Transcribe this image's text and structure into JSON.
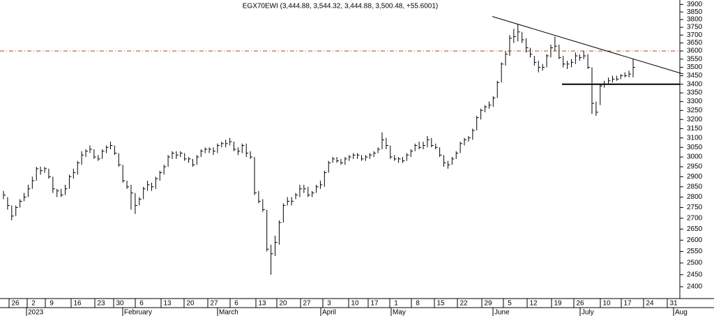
{
  "chart_data": {
    "type": "ohlc",
    "title": "EGX70EWI (3,444.88, 3,544.32, 3,444.88, 3,500.48, +55.6001)",
    "color": "#000000",
    "log_scale": true,
    "ylim": [
      2360,
      3930
    ],
    "yticks": [
      2400,
      2450,
      2500,
      2550,
      2600,
      2650,
      2700,
      2750,
      2800,
      2850,
      2900,
      2950,
      3000,
      3050,
      3100,
      3150,
      3200,
      3250,
      3300,
      3350,
      3400,
      3450,
      3500,
      3550,
      3600,
      3650,
      3700,
      3750,
      3800,
      3850,
      3900
    ],
    "day_labels": [
      "26",
      "2",
      "9",
      "16",
      "23",
      "30",
      "6",
      "13",
      "20",
      "27",
      "6",
      "13",
      "20",
      "27",
      "3",
      "10",
      "17",
      "1",
      "8",
      "15",
      "22",
      "29",
      "5",
      "12",
      "19",
      "26",
      "10",
      "17",
      "24",
      "31"
    ],
    "month_labels": [
      "2023",
      "February",
      "March",
      "April",
      "May",
      "June",
      "July",
      "Aug"
    ],
    "high": [
      2830,
      2800,
      2760,
      2760,
      2790,
      2820,
      2860,
      2900,
      2950,
      2950,
      2950,
      2940,
      2900,
      2840,
      2840,
      2860,
      2910,
      2940,
      2980,
      3030,
      3040,
      3060,
      3040,
      3010,
      3040,
      3060,
      3080,
      3060,
      3020,
      2960,
      2880,
      2860,
      2820,
      2800,
      2850,
      2880,
      2870,
      2900,
      2930,
      2960,
      3010,
      3030,
      3030,
      3030,
      3020,
      3000,
      2990,
      3010,
      3040,
      3050,
      3050,
      3050,
      3070,
      3080,
      3090,
      3100,
      3080,
      3050,
      3070,
      3070,
      3030,
      3000,
      2830,
      2790,
      2740,
      2580,
      2620,
      2690,
      2770,
      2800,
      2800,
      2820,
      2860,
      2860,
      2850,
      2830,
      2860,
      2880,
      2930,
      2980,
      3000,
      3000,
      2990,
      3000,
      3010,
      3020,
      3020,
      3010,
      3010,
      3020,
      3030,
      3050,
      3130,
      3100,
      3060,
      3010,
      3000,
      3000,
      3020,
      3040,
      3070,
      3080,
      3080,
      3110,
      3100,
      3070,
      3050,
      3010,
      2980,
      3000,
      3030,
      3080,
      3100,
      3110,
      3150,
      3220,
      3260,
      3280,
      3300,
      3330,
      3420,
      3530,
      3600,
      3700,
      3740,
      3770,
      3720,
      3680,
      3620,
      3570,
      3540,
      3520,
      3580,
      3640,
      3690,
      3640,
      3570,
      3540,
      3550,
      3590,
      3580,
      3600,
      3580,
      3500,
      3300,
      3400,
      3420,
      3440,
      3450,
      3450,
      3460,
      3470,
      3480,
      3550
    ],
    "low": [
      2790,
      2740,
      2690,
      2710,
      2750,
      2780,
      2800,
      2840,
      2880,
      2910,
      2920,
      2890,
      2820,
      2800,
      2800,
      2810,
      2840,
      2890,
      2910,
      2960,
      3000,
      3020,
      2990,
      2980,
      2990,
      3020,
      3040,
      3010,
      2950,
      2870,
      2840,
      2740,
      2720,
      2760,
      2790,
      2830,
      2830,
      2840,
      2880,
      2910,
      2950,
      2990,
      2990,
      3000,
      2980,
      2970,
      2950,
      2960,
      3000,
      3020,
      3020,
      3010,
      3020,
      3050,
      3050,
      3060,
      3030,
      3010,
      3020,
      3000,
      2990,
      2810,
      2770,
      2730,
      2550,
      2450,
      2530,
      2580,
      2680,
      2760,
      2760,
      2790,
      2800,
      2820,
      2800,
      2800,
      2820,
      2840,
      2850,
      2920,
      2970,
      2970,
      2960,
      2960,
      2980,
      2990,
      2990,
      2980,
      2980,
      2990,
      3000,
      3020,
      3040,
      3040,
      2990,
      2980,
      2970,
      2970,
      2980,
      3000,
      3030,
      3040,
      3040,
      3050,
      3050,
      3040,
      3000,
      2950,
      2940,
      2960,
      2990,
      3020,
      3060,
      3080,
      3090,
      3140,
      3200,
      3240,
      3260,
      3270,
      3320,
      3410,
      3510,
      3570,
      3650,
      3660,
      3650,
      3590,
      3560,
      3510,
      3470,
      3480,
      3500,
      3560,
      3600,
      3550,
      3500,
      3490,
      3500,
      3520,
      3540,
      3550,
      3490,
      3230,
      3220,
      3280,
      3380,
      3400,
      3410,
      3420,
      3430,
      3440,
      3440,
      3440
    ],
    "close": [
      2810,
      2760,
      2710,
      2750,
      2780,
      2800,
      2840,
      2880,
      2940,
      2930,
      2940,
      2900,
      2840,
      2830,
      2810,
      2840,
      2900,
      2920,
      2970,
      3010,
      3030,
      3040,
      3000,
      2990,
      3030,
      3050,
      3060,
      3020,
      2960,
      2880,
      2850,
      2820,
      2760,
      2790,
      2840,
      2860,
      2850,
      2890,
      2920,
      2950,
      3000,
      3020,
      3010,
      3020,
      2990,
      2990,
      2960,
      3000,
      3030,
      3040,
      3040,
      3030,
      3060,
      3070,
      3070,
      3080,
      3040,
      3030,
      3060,
      3020,
      3000,
      2820,
      2780,
      2740,
      2560,
      2540,
      2590,
      2680,
      2760,
      2780,
      2780,
      2810,
      2840,
      2840,
      2810,
      2820,
      2850,
      2860,
      2920,
      2970,
      2990,
      2980,
      2970,
      2990,
      3000,
      3010,
      3010,
      2990,
      3000,
      3010,
      3020,
      3040,
      3090,
      3060,
      3000,
      2990,
      2990,
      2980,
      3010,
      3030,
      3060,
      3050,
      3060,
      3090,
      3060,
      3050,
      3010,
      2970,
      2960,
      2990,
      3020,
      3070,
      3090,
      3100,
      3140,
      3210,
      3250,
      3270,
      3280,
      3320,
      3410,
      3520,
      3580,
      3680,
      3690,
      3720,
      3670,
      3620,
      3580,
      3530,
      3500,
      3500,
      3570,
      3620,
      3630,
      3560,
      3520,
      3520,
      3530,
      3570,
      3560,
      3570,
      3500,
      3290,
      3240,
      3390,
      3400,
      3420,
      3430,
      3430,
      3450,
      3450,
      3460,
      3500
    ],
    "resistance_level": 3600,
    "support_level": 3400,
    "trendline": [
      3820,
      3460
    ]
  }
}
